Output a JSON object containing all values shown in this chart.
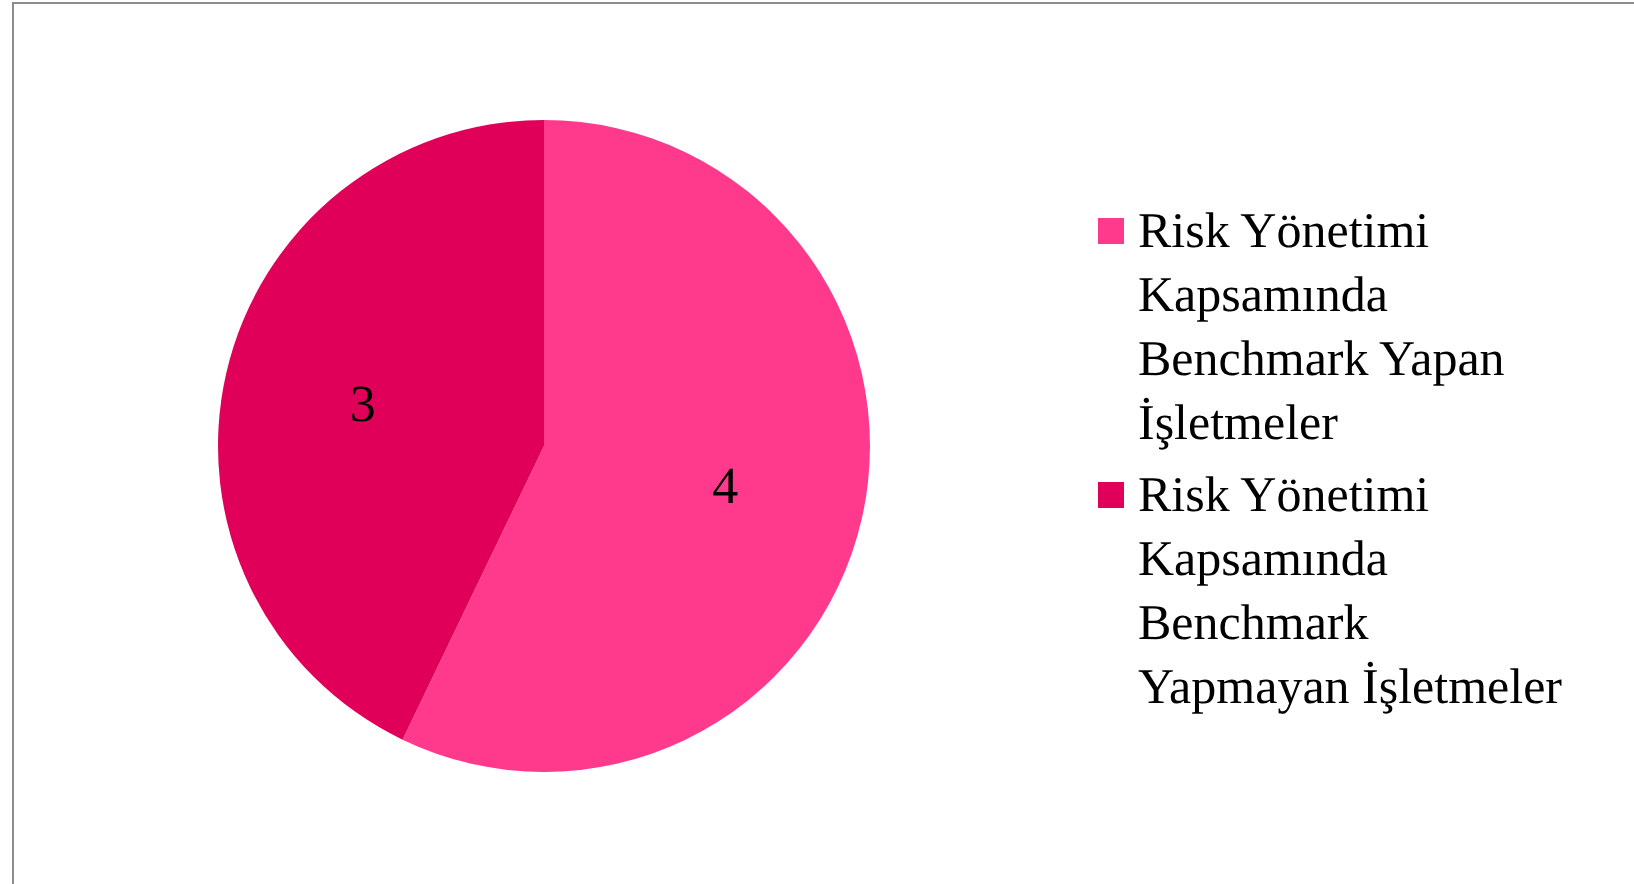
{
  "chart_data": {
    "type": "pie",
    "categories": [
      "Risk Yönetimi Kapsamında Benchmark Yapan İşletmeler",
      "Risk Yönetimi Kapsamında Benchmark Yapmayan İşletmeler"
    ],
    "values": [
      4,
      3
    ],
    "colors": [
      "#ff3a8c",
      "#e0005a"
    ],
    "data_labels": true,
    "legend": "right"
  }
}
